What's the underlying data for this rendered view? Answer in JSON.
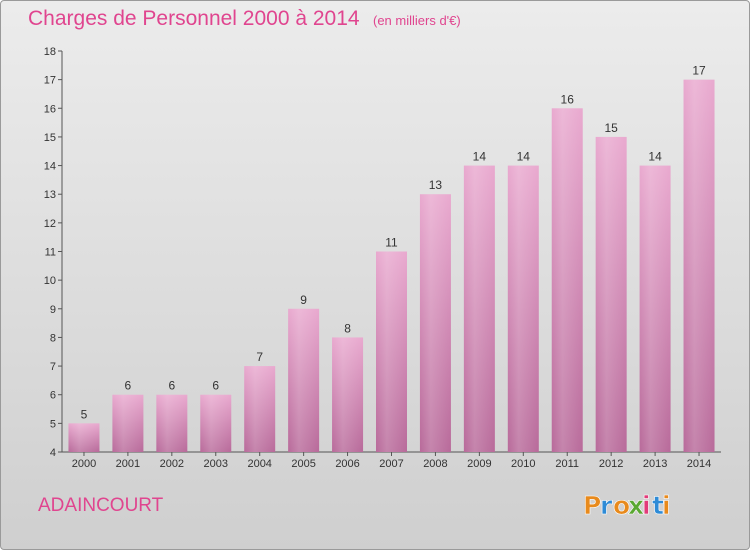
{
  "header": {
    "title": "Charges de Personnel 2000 à 2014",
    "subtitle": "(en milliers d'€)"
  },
  "footer": {
    "commune": "ADAINCOURT",
    "logo_text": "Proxiti"
  },
  "colors": {
    "title": "#e0458f",
    "bar_top": "#e9a9cf",
    "bar_bottom": "#b86a9a",
    "logo_letters": [
      "#e88a1c",
      "#2e8bd6",
      "#e88a1c",
      "#5aa832",
      "#e23b7a",
      "#2e8bd6",
      "#e88a1c"
    ]
  },
  "chart_data": {
    "type": "bar",
    "title": "Charges de Personnel 2000 à 2014",
    "subtitle": "(en milliers d'€)",
    "categories": [
      "2000",
      "2001",
      "2002",
      "2003",
      "2004",
      "2005",
      "2006",
      "2007",
      "2008",
      "2009",
      "2010",
      "2011",
      "2012",
      "2013",
      "2014"
    ],
    "values": [
      5,
      6,
      6,
      6,
      7,
      9,
      8,
      11,
      13,
      14,
      14,
      16,
      15,
      14,
      17
    ],
    "ylim": [
      4,
      18
    ],
    "yticks": [
      4,
      5,
      6,
      7,
      8,
      9,
      10,
      11,
      12,
      13,
      14,
      15,
      16,
      17,
      18
    ],
    "data_labels": true,
    "grid": false,
    "legend": "none"
  }
}
